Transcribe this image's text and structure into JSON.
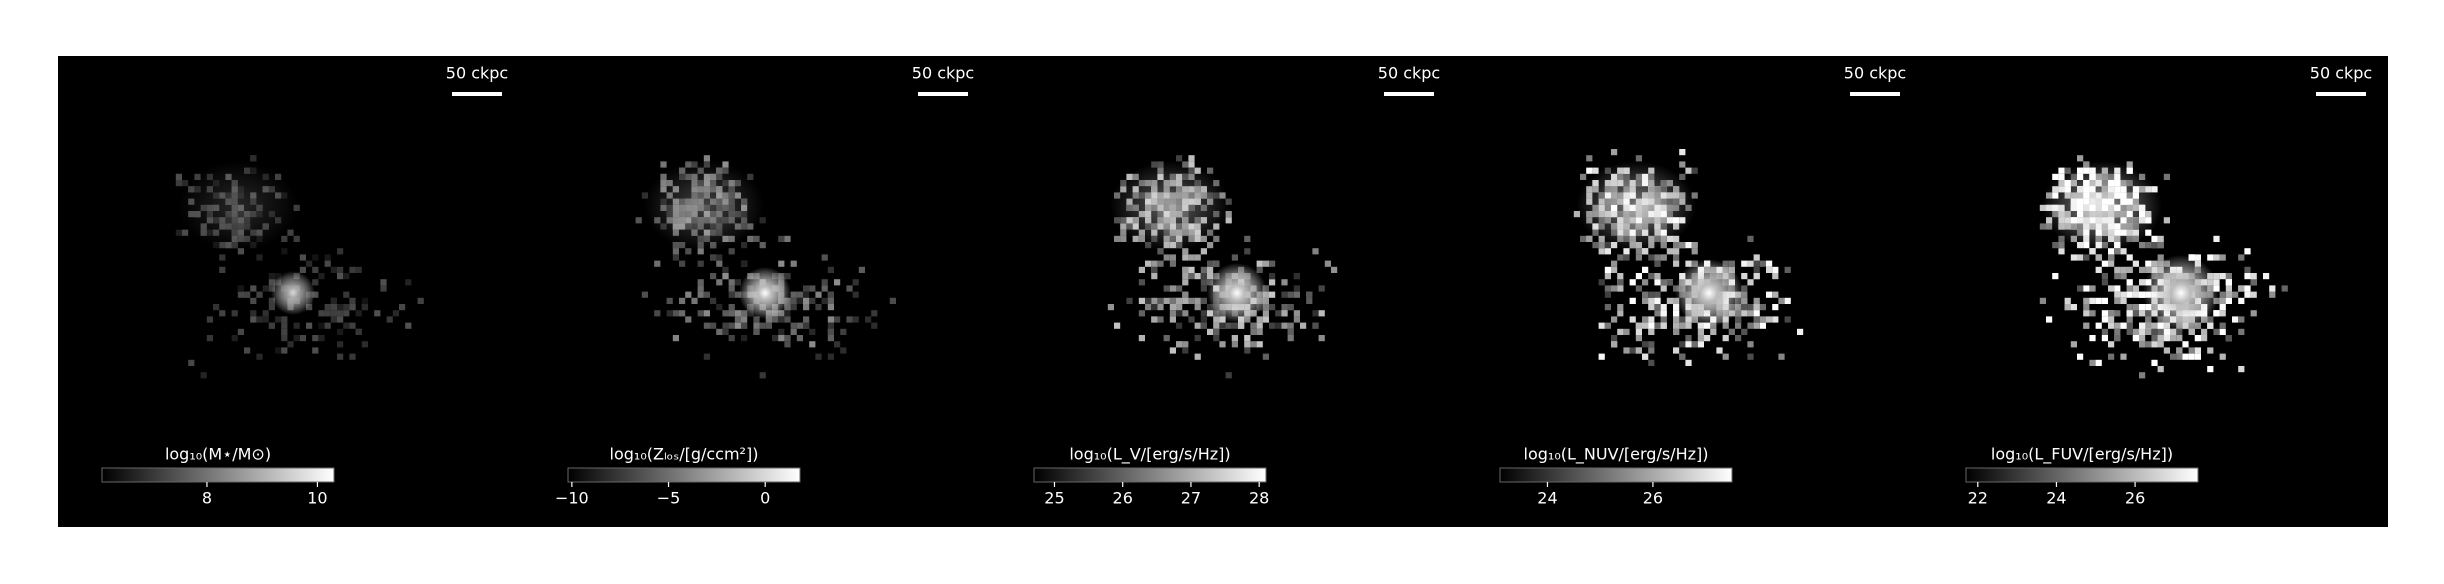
{
  "chart_data": [
    {
      "type": "image",
      "scale_label": "50 ckpc",
      "colorbar": {
        "label": "log₁₀(M⋆/M⊙)",
        "clim": [
          6.1,
          10.3
        ],
        "ticks": [
          8,
          10
        ]
      }
    },
    {
      "type": "image",
      "scale_label": "50 ckpc",
      "colorbar": {
        "label": "log₁₀(Zₗₒₛ/[g/ccm²])",
        "clim": [
          -10.2,
          1.8
        ],
        "ticks": [
          {
            "value": -10,
            "label": "−10"
          },
          {
            "value": -5,
            "label": "−5"
          },
          0
        ]
      }
    },
    {
      "type": "image",
      "scale_label": "50 ckpc",
      "colorbar": {
        "label": "log₁₀(L_V/[erg/s/Hz])",
        "clim": [
          24.7,
          28.1
        ],
        "ticks": [
          25,
          26,
          27,
          28
        ]
      }
    },
    {
      "type": "image",
      "scale_label": "50 ckpc",
      "colorbar": {
        "label": "log₁₀(L_NUV/[erg/s/Hz])",
        "clim": [
          23.1,
          27.5
        ],
        "ticks": [
          24,
          26
        ]
      }
    },
    {
      "type": "image",
      "scale_label": "50 ckpc",
      "colorbar": {
        "label": "log₁₀(L_FUV/[erg/s/Hz])",
        "clim": [
          21.7,
          27.6
        ],
        "ticks": [
          22,
          24,
          26
        ]
      }
    }
  ]
}
